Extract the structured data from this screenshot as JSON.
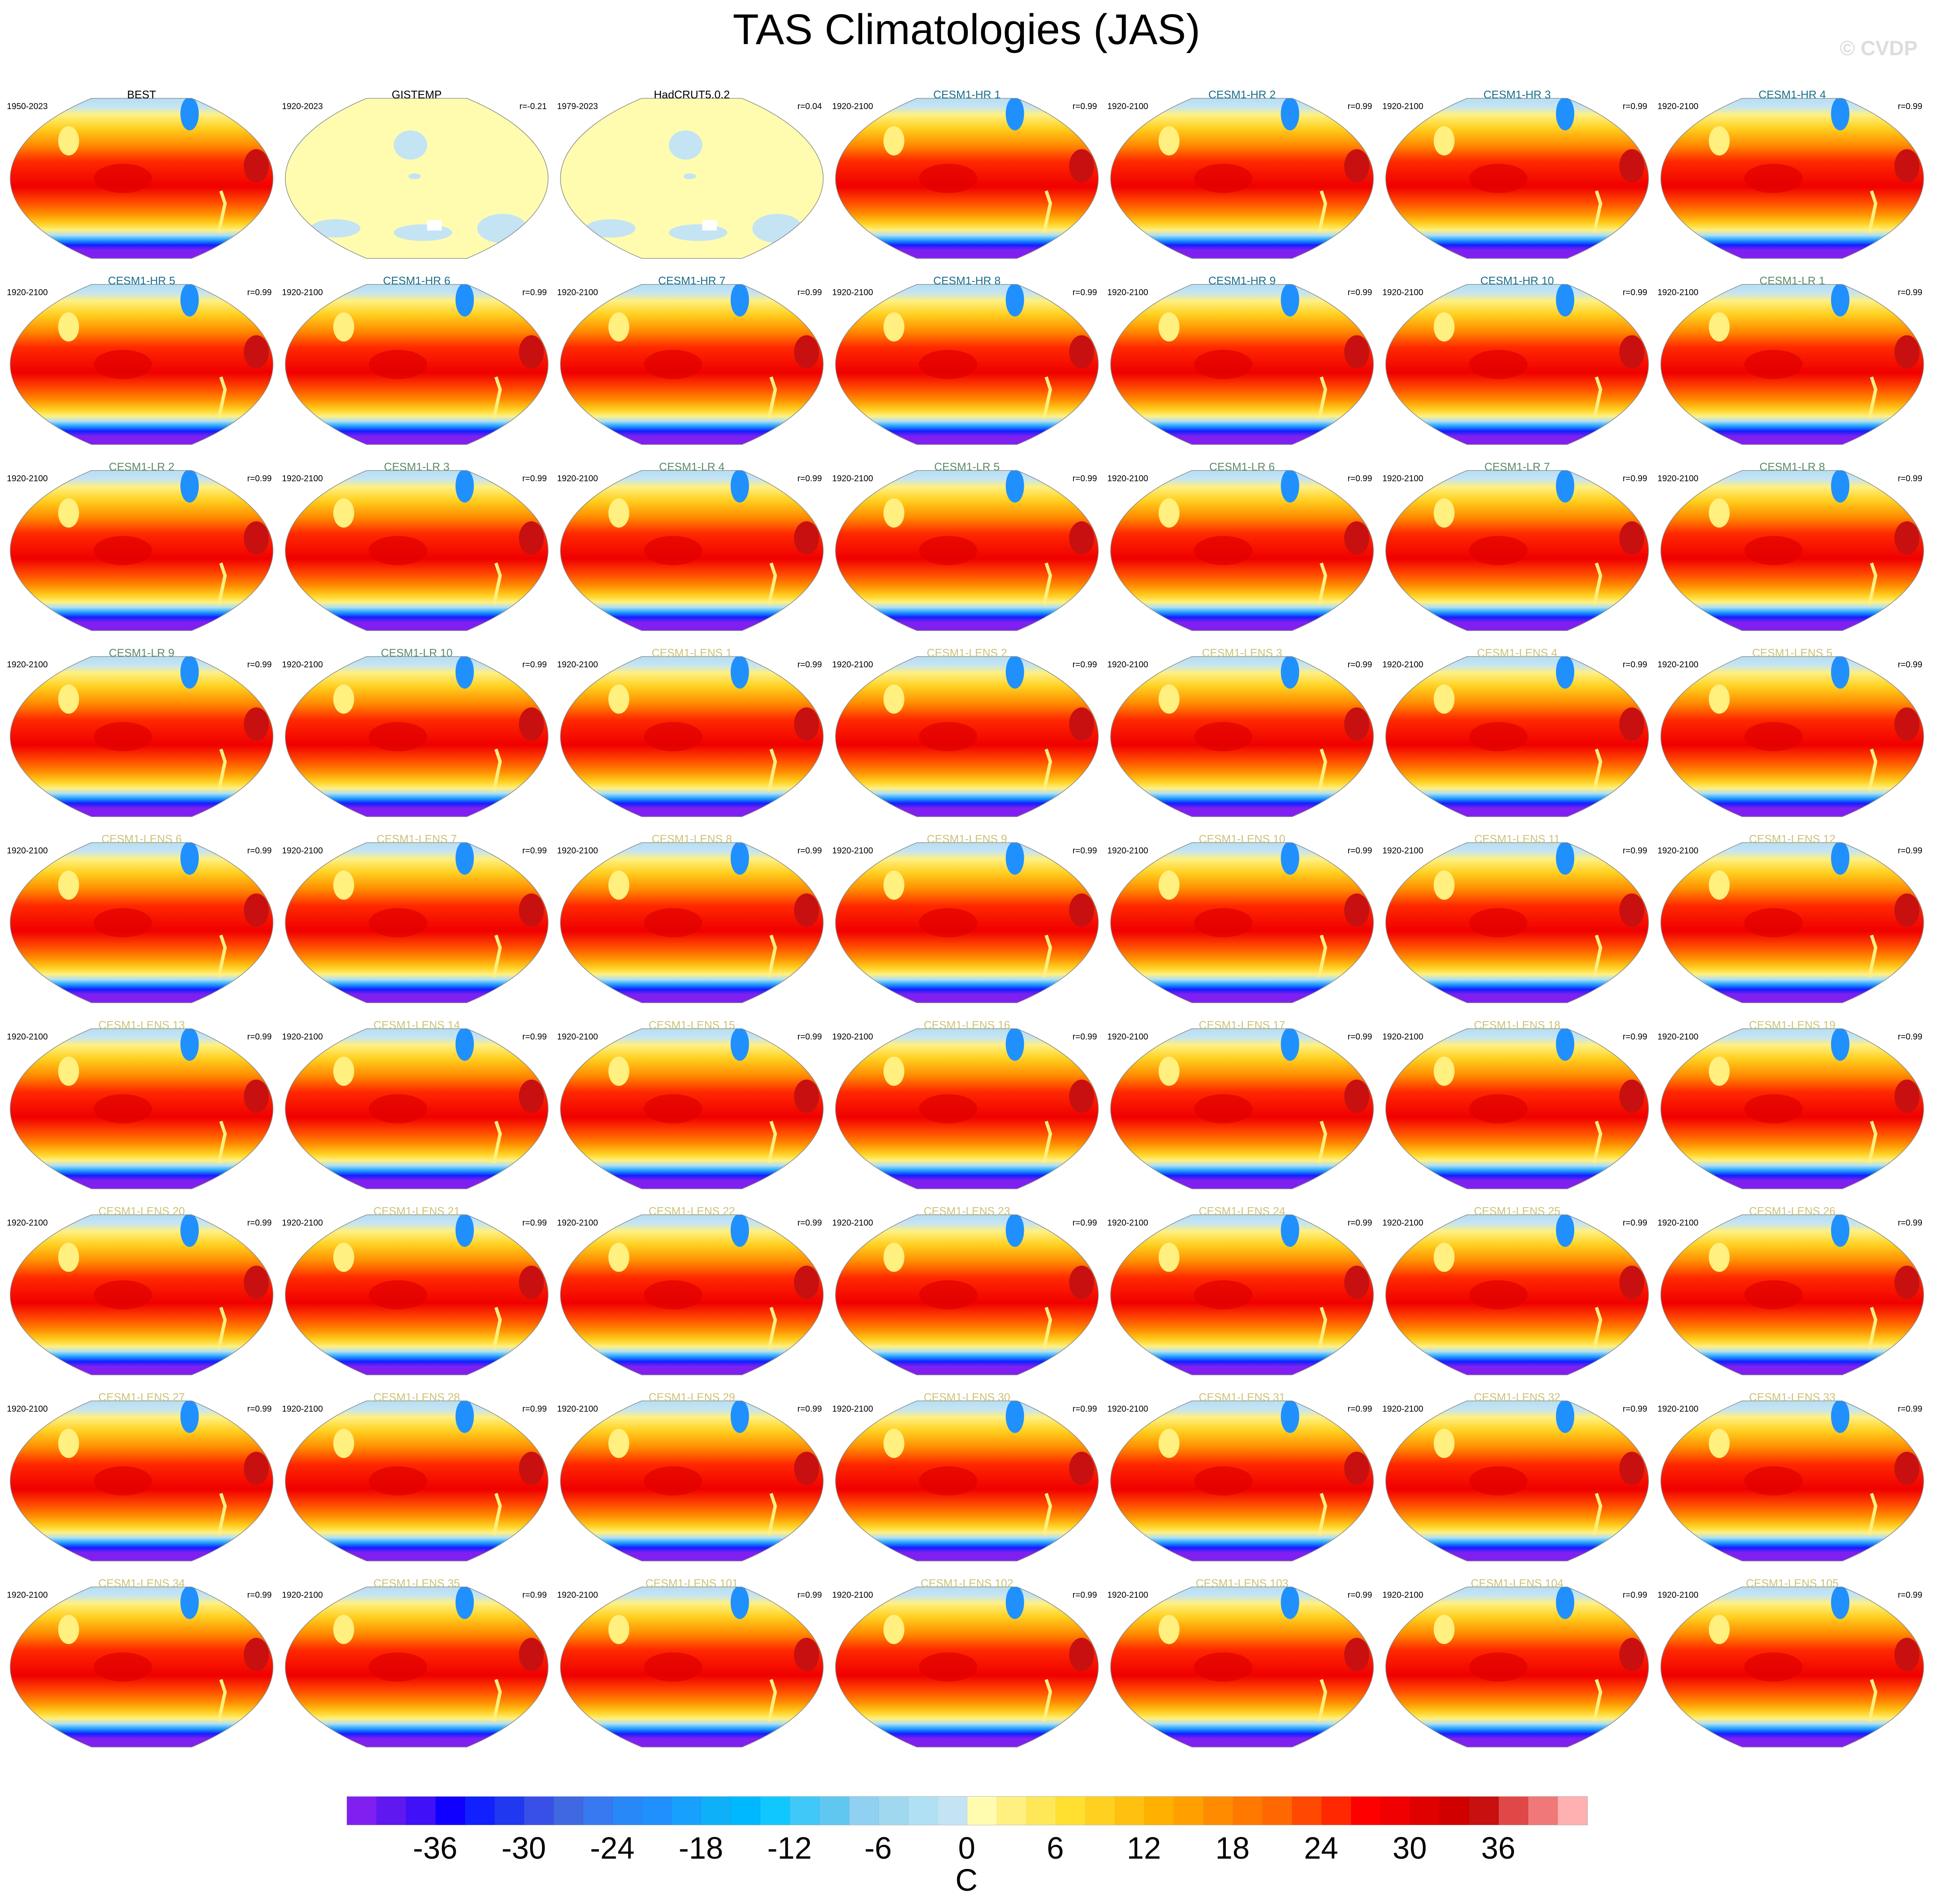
{
  "title": "TAS Climatologies (JAS)",
  "copyright": "© CVDP",
  "group_colors": {
    "obs": "#000000",
    "hr": "#1a6e8a",
    "lr": "#5e8a66",
    "lens": "#cdc27a"
  },
  "panels": [
    {
      "name": "BEST",
      "years": "1950-2023",
      "r": "",
      "group": "obs",
      "kind": "model"
    },
    {
      "name": "GISTEMP",
      "years": "1920-2023",
      "r": "r=-0.21",
      "group": "obs",
      "kind": "anom"
    },
    {
      "name": "HadCRUT5.0.2",
      "years": "1979-2023",
      "r": "r=0.04",
      "group": "obs",
      "kind": "anom"
    },
    {
      "name": "CESM1-HR 1",
      "years": "1920-2100",
      "r": "r=0.99",
      "group": "hr"
    },
    {
      "name": "CESM1-HR 2",
      "years": "1920-2100",
      "r": "r=0.99",
      "group": "hr"
    },
    {
      "name": "CESM1-HR 3",
      "years": "1920-2100",
      "r": "r=0.99",
      "group": "hr"
    },
    {
      "name": "CESM1-HR 4",
      "years": "1920-2100",
      "r": "r=0.99",
      "group": "hr"
    },
    {
      "name": "CESM1-HR 5",
      "years": "1920-2100",
      "r": "r=0.99",
      "group": "hr"
    },
    {
      "name": "CESM1-HR 6",
      "years": "1920-2100",
      "r": "r=0.99",
      "group": "hr"
    },
    {
      "name": "CESM1-HR 7",
      "years": "1920-2100",
      "r": "r=0.99",
      "group": "hr"
    },
    {
      "name": "CESM1-HR 8",
      "years": "1920-2100",
      "r": "r=0.99",
      "group": "hr"
    },
    {
      "name": "CESM1-HR 9",
      "years": "1920-2100",
      "r": "r=0.99",
      "group": "hr"
    },
    {
      "name": "CESM1-HR 10",
      "years": "1920-2100",
      "r": "r=0.99",
      "group": "hr"
    },
    {
      "name": "CESM1-LR 1",
      "years": "1920-2100",
      "r": "r=0.99",
      "group": "lr"
    },
    {
      "name": "CESM1-LR 2",
      "years": "1920-2100",
      "r": "r=0.99",
      "group": "lr"
    },
    {
      "name": "CESM1-LR 3",
      "years": "1920-2100",
      "r": "r=0.99",
      "group": "lr"
    },
    {
      "name": "CESM1-LR 4",
      "years": "1920-2100",
      "r": "r=0.99",
      "group": "lr"
    },
    {
      "name": "CESM1-LR 5",
      "years": "1920-2100",
      "r": "r=0.99",
      "group": "lr"
    },
    {
      "name": "CESM1-LR 6",
      "years": "1920-2100",
      "r": "r=0.99",
      "group": "lr"
    },
    {
      "name": "CESM1-LR 7",
      "years": "1920-2100",
      "r": "r=0.99",
      "group": "lr"
    },
    {
      "name": "CESM1-LR 8",
      "years": "1920-2100",
      "r": "r=0.99",
      "group": "lr"
    },
    {
      "name": "CESM1-LR 9",
      "years": "1920-2100",
      "r": "r=0.99",
      "group": "lr"
    },
    {
      "name": "CESM1-LR 10",
      "years": "1920-2100",
      "r": "r=0.99",
      "group": "lr"
    },
    {
      "name": "CESM1-LENS 1",
      "years": "1920-2100",
      "r": "r=0.99",
      "group": "lens"
    },
    {
      "name": "CESM1-LENS 2",
      "years": "1920-2100",
      "r": "r=0.99",
      "group": "lens"
    },
    {
      "name": "CESM1-LENS 3",
      "years": "1920-2100",
      "r": "r=0.99",
      "group": "lens"
    },
    {
      "name": "CESM1-LENS 4",
      "years": "1920-2100",
      "r": "r=0.99",
      "group": "lens"
    },
    {
      "name": "CESM1-LENS 5",
      "years": "1920-2100",
      "r": "r=0.99",
      "group": "lens"
    },
    {
      "name": "CESM1-LENS 6",
      "years": "1920-2100",
      "r": "r=0.99",
      "group": "lens"
    },
    {
      "name": "CESM1-LENS 7",
      "years": "1920-2100",
      "r": "r=0.99",
      "group": "lens"
    },
    {
      "name": "CESM1-LENS 8",
      "years": "1920-2100",
      "r": "r=0.99",
      "group": "lens"
    },
    {
      "name": "CESM1-LENS 9",
      "years": "1920-2100",
      "r": "r=0.99",
      "group": "lens"
    },
    {
      "name": "CESM1-LENS 10",
      "years": "1920-2100",
      "r": "r=0.99",
      "group": "lens"
    },
    {
      "name": "CESM1-LENS 11",
      "years": "1920-2100",
      "r": "r=0.99",
      "group": "lens"
    },
    {
      "name": "CESM1-LENS 12",
      "years": "1920-2100",
      "r": "r=0.99",
      "group": "lens"
    },
    {
      "name": "CESM1-LENS 13",
      "years": "1920-2100",
      "r": "r=0.99",
      "group": "lens"
    },
    {
      "name": "CESM1-LENS 14",
      "years": "1920-2100",
      "r": "r=0.99",
      "group": "lens"
    },
    {
      "name": "CESM1-LENS 15",
      "years": "1920-2100",
      "r": "r=0.99",
      "group": "lens"
    },
    {
      "name": "CESM1-LENS 16",
      "years": "1920-2100",
      "r": "r=0.99",
      "group": "lens"
    },
    {
      "name": "CESM1-LENS 17",
      "years": "1920-2100",
      "r": "r=0.99",
      "group": "lens"
    },
    {
      "name": "CESM1-LENS 18",
      "years": "1920-2100",
      "r": "r=0.99",
      "group": "lens"
    },
    {
      "name": "CESM1-LENS 19",
      "years": "1920-2100",
      "r": "r=0.99",
      "group": "lens"
    },
    {
      "name": "CESM1-LENS 20",
      "years": "1920-2100",
      "r": "r=0.99",
      "group": "lens"
    },
    {
      "name": "CESM1-LENS 21",
      "years": "1920-2100",
      "r": "r=0.99",
      "group": "lens"
    },
    {
      "name": "CESM1-LENS 22",
      "years": "1920-2100",
      "r": "r=0.99",
      "group": "lens"
    },
    {
      "name": "CESM1-LENS 23",
      "years": "1920-2100",
      "r": "r=0.99",
      "group": "lens"
    },
    {
      "name": "CESM1-LENS 24",
      "years": "1920-2100",
      "r": "r=0.99",
      "group": "lens"
    },
    {
      "name": "CESM1-LENS 25",
      "years": "1920-2100",
      "r": "r=0.99",
      "group": "lens"
    },
    {
      "name": "CESM1-LENS 26",
      "years": "1920-2100",
      "r": "r=0.99",
      "group": "lens"
    },
    {
      "name": "CESM1-LENS 27",
      "years": "1920-2100",
      "r": "r=0.99",
      "group": "lens"
    },
    {
      "name": "CESM1-LENS 28",
      "years": "1920-2100",
      "r": "r=0.99",
      "group": "lens"
    },
    {
      "name": "CESM1-LENS 29",
      "years": "1920-2100",
      "r": "r=0.99",
      "group": "lens"
    },
    {
      "name": "CESM1-LENS 30",
      "years": "1920-2100",
      "r": "r=0.99",
      "group": "lens"
    },
    {
      "name": "CESM1-LENS 31",
      "years": "1920-2100",
      "r": "r=0.99",
      "group": "lens"
    },
    {
      "name": "CESM1-LENS 32",
      "years": "1920-2100",
      "r": "r=0.99",
      "group": "lens"
    },
    {
      "name": "CESM1-LENS 33",
      "years": "1920-2100",
      "r": "r=0.99",
      "group": "lens"
    },
    {
      "name": "CESM1-LENS 34",
      "years": "1920-2100",
      "r": "r=0.99",
      "group": "lens"
    },
    {
      "name": "CESM1-LENS 35",
      "years": "1920-2100",
      "r": "r=0.99",
      "group": "lens"
    },
    {
      "name": "CESM1-LENS 101",
      "years": "1920-2100",
      "r": "r=0.99",
      "group": "lens"
    },
    {
      "name": "CESM1-LENS 102",
      "years": "1920-2100",
      "r": "r=0.99",
      "group": "lens"
    },
    {
      "name": "CESM1-LENS 103",
      "years": "1920-2100",
      "r": "r=0.99",
      "group": "lens"
    },
    {
      "name": "CESM1-LENS 104",
      "years": "1920-2100",
      "r": "r=0.99",
      "group": "lens"
    },
    {
      "name": "CESM1-LENS 105",
      "years": "1920-2100",
      "r": "r=0.99",
      "group": "lens"
    }
  ],
  "chart_data": {
    "type": "heatmap",
    "title": "TAS Climatologies (JAS)",
    "layout": "9 rows x 7 columns of global maps",
    "colorbar": {
      "unit": "C",
      "ticks": [
        -36,
        -30,
        -24,
        -18,
        -12,
        -6,
        0,
        6,
        12,
        18,
        24,
        30,
        36
      ],
      "tick_labels": [
        "-36",
        "-30",
        "-24",
        "-18",
        "-12",
        "-6",
        "0",
        "6",
        "12",
        "18",
        "24",
        "30",
        "36"
      ],
      "colors": [
        "#8020f0",
        "#6018f0",
        "#4010f8",
        "#1000ff",
        "#1020ff",
        "#2038f0",
        "#3850e8",
        "#4068e0",
        "#3878f0",
        "#2888f8",
        "#2090ff",
        "#18a0ff",
        "#10b0f8",
        "#00b8ff",
        "#10c8ff",
        "#40c8f8",
        "#60c8f0",
        "#90d0f0",
        "#a0d8f0",
        "#b0e0f4",
        "#c4e4f4",
        "#fffcb0",
        "#fff080",
        "#ffe858",
        "#ffe030",
        "#ffd020",
        "#ffc010",
        "#ffb000",
        "#ffa000",
        "#ff8c00",
        "#ff7800",
        "#ff6800",
        "#ff4800",
        "#ff2800",
        "#ff0000",
        "#f00000",
        "#e00000",
        "#d00000",
        "#c81010",
        "#e04848",
        "#f07878",
        "#ffb0b0"
      ]
    }
  }
}
